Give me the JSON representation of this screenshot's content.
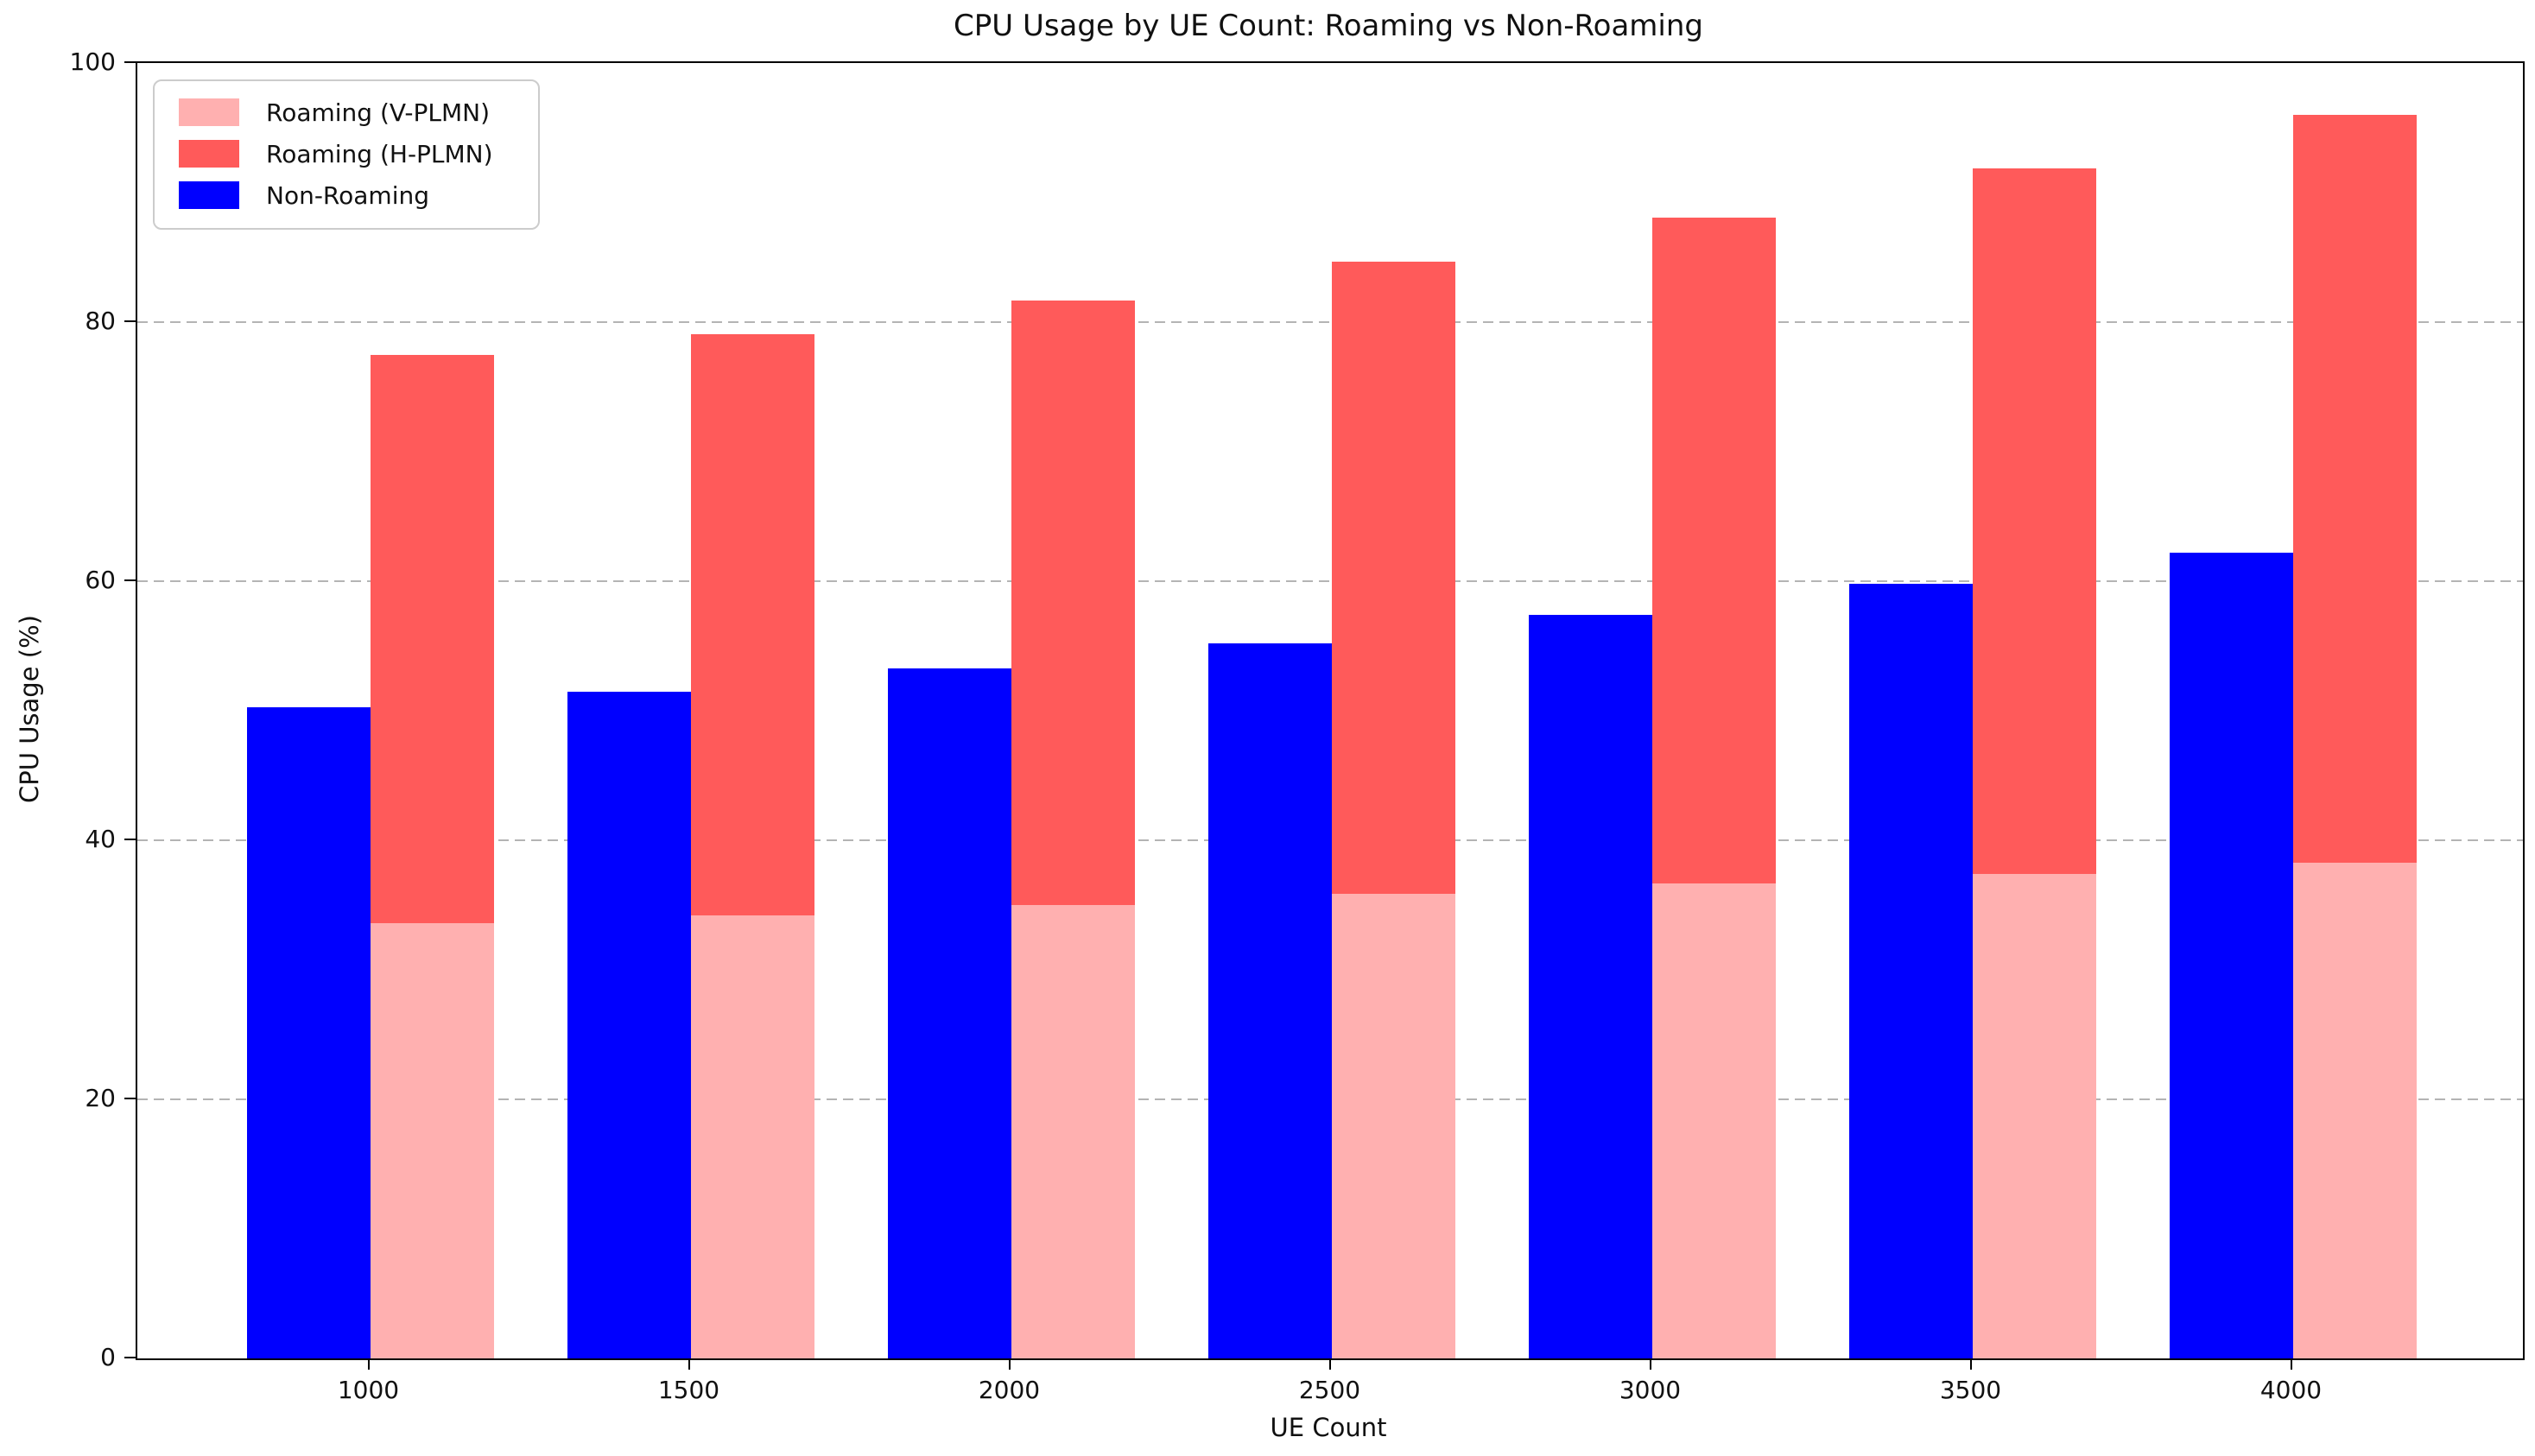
{
  "chart_data": {
    "type": "bar",
    "title": "CPU Usage by UE Count: Roaming vs Non-Roaming",
    "xlabel": "UE Count",
    "ylabel": "CPU Usage (%)",
    "ylim": [
      0,
      100
    ],
    "yticks": [
      0,
      20,
      40,
      60,
      80,
      100
    ],
    "grid": "horizontal-dashed",
    "grid_color": "#b4b4b4",
    "legend_position": "upper-left",
    "categories": [
      "1000",
      "1500",
      "2000",
      "2500",
      "3000",
      "3500",
      "4000"
    ],
    "series": [
      {
        "name": "Roaming (V-PLMN)",
        "color": "#FFB0B0",
        "role": "stack-bottom",
        "values": [
          33.6,
          34.2,
          35.0,
          35.9,
          36.7,
          37.4,
          38.3
        ]
      },
      {
        "name": "Roaming (H-PLMN)",
        "color": "#FF5A5A",
        "role": "stack-top",
        "values": [
          43.9,
          44.9,
          46.7,
          48.8,
          51.4,
          54.5,
          57.7
        ]
      },
      {
        "name": "Non-Roaming",
        "color": "#0000FF",
        "role": "separate-bar",
        "values": [
          50.3,
          51.5,
          53.3,
          55.2,
          57.4,
          59.8,
          62.2
        ]
      }
    ],
    "roaming_stack_totals": [
      77.5,
      79.1,
      81.7,
      84.7,
      88.1,
      91.9,
      96.0
    ],
    "non_roaming_color": "#0000FF",
    "axis_color": "#000000"
  }
}
